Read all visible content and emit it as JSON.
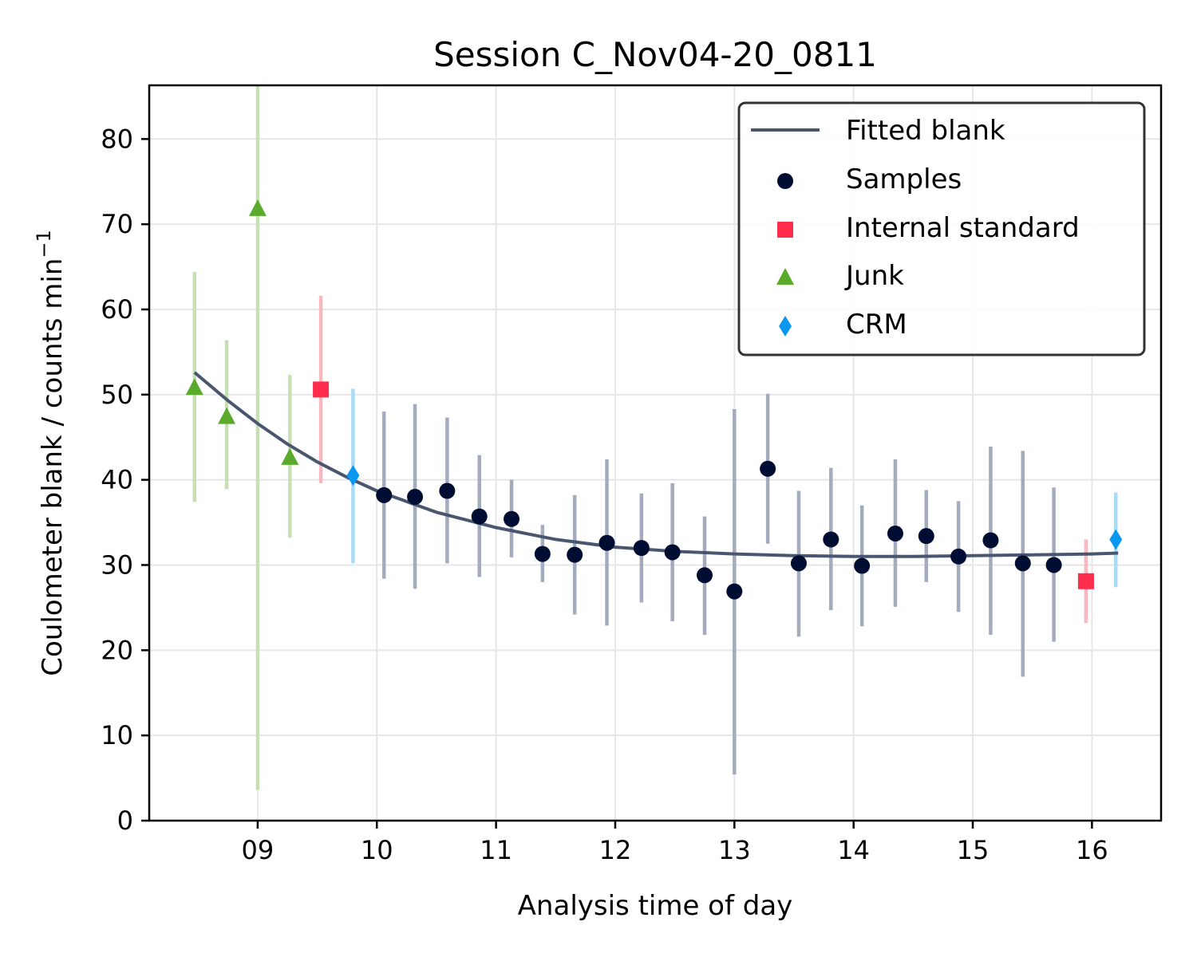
{
  "chart_data": {
    "type": "scatter",
    "title": "Session C_Nov04-20_0811",
    "xlabel": "Analysis time of day",
    "ylabel": "Coulometer blank / counts min",
    "ylabel_sup": "−1",
    "xlim": [
      8.09,
      16.58
    ],
    "ylim": [
      0,
      86.3
    ],
    "x_ticks": [
      9,
      10,
      11,
      12,
      13,
      14,
      15,
      16
    ],
    "x_tick_labels": [
      "09",
      "10",
      "11",
      "12",
      "13",
      "14",
      "15",
      "16"
    ],
    "y_ticks": [
      0,
      10,
      20,
      30,
      40,
      50,
      60,
      70,
      80
    ],
    "y_tick_labels": [
      "0",
      "10",
      "20",
      "30",
      "40",
      "50",
      "60",
      "70",
      "80"
    ],
    "grid": true,
    "legend_position": "upper right",
    "fit": {
      "name": "Fitted blank",
      "color": "#4a5670",
      "x": [
        8.47,
        8.75,
        9.0,
        9.25,
        9.5,
        9.75,
        10.0,
        10.5,
        11.0,
        11.5,
        12.0,
        12.5,
        13.0,
        13.5,
        14.0,
        14.5,
        15.0,
        15.5,
        16.0,
        16.22
      ],
      "y": [
        52.6,
        49.3,
        46.6,
        44.2,
        42.1,
        40.3,
        38.7,
        36.2,
        34.4,
        33.0,
        32.1,
        31.6,
        31.3,
        31.1,
        31.0,
        31.0,
        31.1,
        31.2,
        31.3,
        31.4
      ]
    },
    "series": [
      {
        "name": "Samples",
        "marker": "circle",
        "color": "#000d33",
        "err_color": "#a3abbd",
        "points": [
          {
            "x": 10.06,
            "y": 38.2,
            "lo": 28.4,
            "hi": 48.0
          },
          {
            "x": 10.32,
            "y": 38.0,
            "lo": 27.2,
            "hi": 48.9
          },
          {
            "x": 10.59,
            "y": 38.7,
            "lo": 30.2,
            "hi": 47.3
          },
          {
            "x": 10.86,
            "y": 35.7,
            "lo": 28.6,
            "hi": 42.9
          },
          {
            "x": 11.13,
            "y": 35.4,
            "lo": 30.9,
            "hi": 40.0
          },
          {
            "x": 11.39,
            "y": 31.3,
            "lo": 28.0,
            "hi": 34.7
          },
          {
            "x": 11.66,
            "y": 31.2,
            "lo": 24.2,
            "hi": 38.2
          },
          {
            "x": 11.93,
            "y": 32.6,
            "lo": 22.9,
            "hi": 42.4
          },
          {
            "x": 12.22,
            "y": 32.0,
            "lo": 25.6,
            "hi": 38.4
          },
          {
            "x": 12.48,
            "y": 31.5,
            "lo": 23.4,
            "hi": 39.6
          },
          {
            "x": 12.75,
            "y": 28.8,
            "lo": 21.8,
            "hi": 35.7
          },
          {
            "x": 13.0,
            "y": 26.9,
            "lo": 5.4,
            "hi": 48.3
          },
          {
            "x": 13.28,
            "y": 41.3,
            "lo": 32.5,
            "hi": 50.1
          },
          {
            "x": 13.54,
            "y": 30.2,
            "lo": 21.6,
            "hi": 38.7
          },
          {
            "x": 13.81,
            "y": 33.0,
            "lo": 24.7,
            "hi": 41.4
          },
          {
            "x": 14.07,
            "y": 29.9,
            "lo": 22.8,
            "hi": 37.0
          },
          {
            "x": 14.35,
            "y": 33.7,
            "lo": 25.1,
            "hi": 42.4
          },
          {
            "x": 14.61,
            "y": 33.4,
            "lo": 28.0,
            "hi": 38.8
          },
          {
            "x": 14.88,
            "y": 31.0,
            "lo": 24.5,
            "hi": 37.5
          },
          {
            "x": 15.15,
            "y": 32.9,
            "lo": 21.8,
            "hi": 43.9
          },
          {
            "x": 15.42,
            "y": 30.2,
            "lo": 16.9,
            "hi": 43.4
          },
          {
            "x": 15.68,
            "y": 30.0,
            "lo": 21.0,
            "hi": 39.1
          }
        ]
      },
      {
        "name": "Internal standard",
        "marker": "square",
        "color": "#ff2d4b",
        "err_color": "#f9b7c0",
        "points": [
          {
            "x": 9.53,
            "y": 50.6,
            "lo": 39.6,
            "hi": 61.6
          },
          {
            "x": 15.95,
            "y": 28.1,
            "lo": 23.2,
            "hi": 33.0
          }
        ]
      },
      {
        "name": "Junk",
        "marker": "triangle",
        "color": "#5aab2b",
        "err_color": "#c6e0b4",
        "points": [
          {
            "x": 8.47,
            "y": 50.8,
            "lo": 37.4,
            "hi": 64.4
          },
          {
            "x": 8.74,
            "y": 47.4,
            "lo": 38.9,
            "hi": 56.4
          },
          {
            "x": 9.0,
            "y": 71.8,
            "lo": 3.6,
            "hi": 86.3
          },
          {
            "x": 9.27,
            "y": 42.6,
            "lo": 33.2,
            "hi": 52.3
          }
        ]
      },
      {
        "name": "CRM",
        "marker": "diamond",
        "color": "#0a97f0",
        "err_color": "#abdaf5",
        "points": [
          {
            "x": 9.8,
            "y": 40.5,
            "lo": 30.2,
            "hi": 50.7
          },
          {
            "x": 16.2,
            "y": 33.0,
            "lo": 27.4,
            "hi": 38.5
          }
        ]
      }
    ]
  }
}
